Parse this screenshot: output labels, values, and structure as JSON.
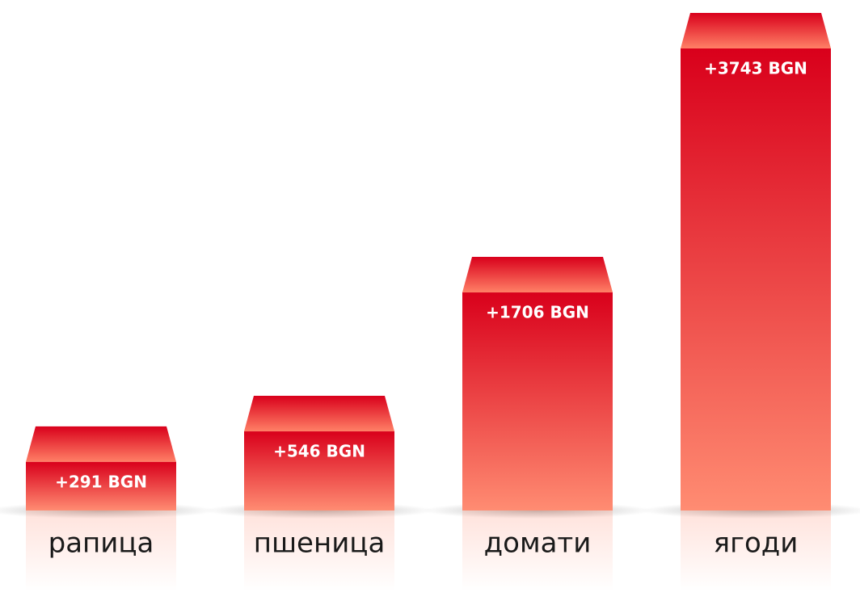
{
  "chart_data": {
    "type": "bar",
    "categories": [
      "рапица",
      "пшеница",
      "домати",
      "ягоди"
    ],
    "values": [
      291,
      546,
      1706,
      3743
    ],
    "value_labels": [
      "+291 BGN",
      "+546 BGN",
      "+1706 BGN",
      "+3743 BGN"
    ],
    "color": "#d9001b"
  }
}
